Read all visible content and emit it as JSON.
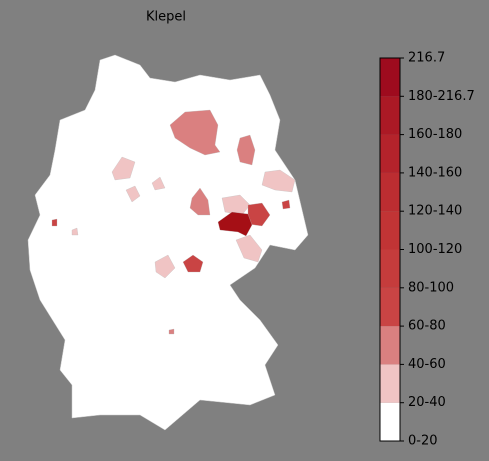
{
  "title": "Klepel",
  "colorbar": {
    "labels": [
      "0-20",
      "20-40",
      "40-60",
      "60-80",
      "80-100",
      "100-120",
      "120-140",
      "140-160",
      "160-180",
      "180-216.7",
      "216.7"
    ],
    "colors": [
      "#ffffff",
      "#f0c4c4",
      "#da8080",
      "#c94444",
      "#c53c3c",
      "#c13435",
      "#bc2d31",
      "#b4232b",
      "#ab1925",
      "#9e0b1e"
    ]
  }
}
